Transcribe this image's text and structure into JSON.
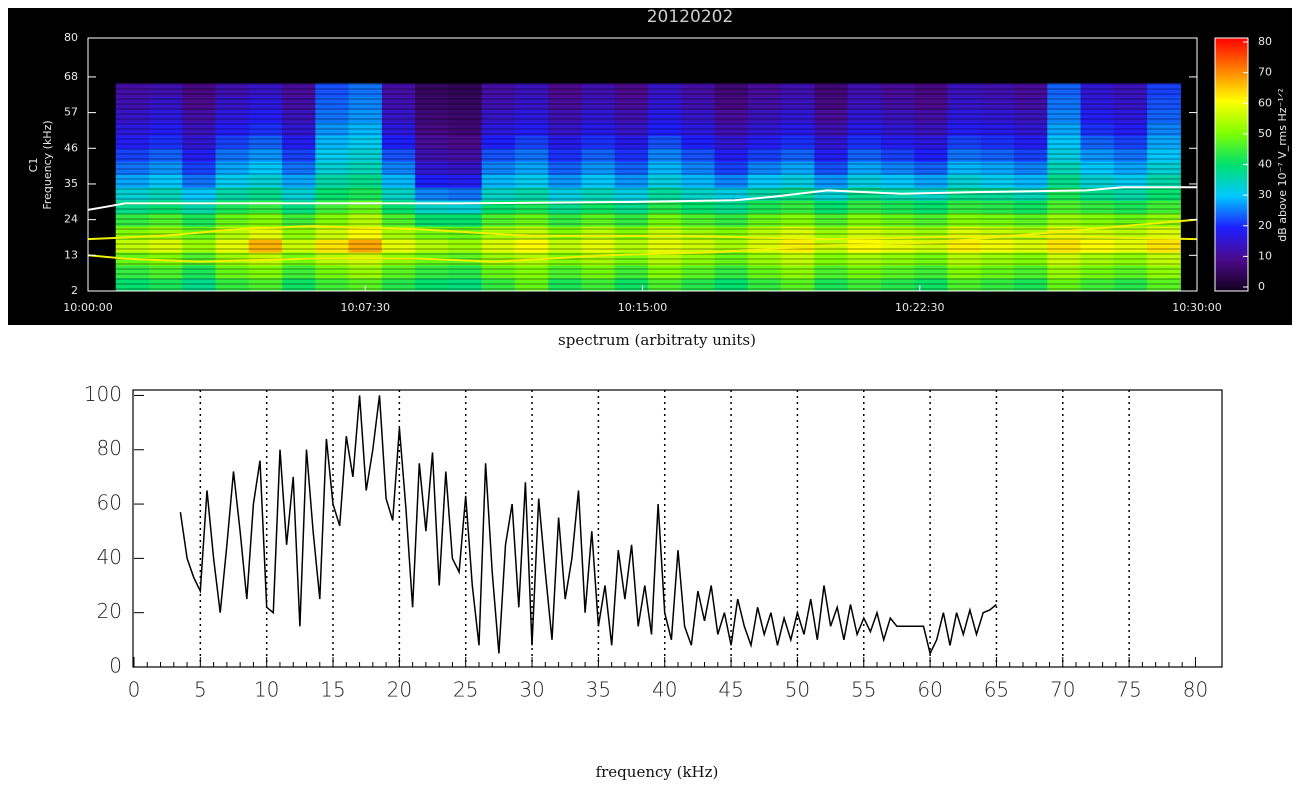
{
  "chart_data": [
    {
      "type": "heatmap",
      "title": "20120202",
      "panel_label": "C1",
      "ylabel": "Frequency (kHz)",
      "colorbar_label": "dB above 10⁻⁷ V_rms Hz⁻¹ᐟ²",
      "xlim": [
        "10:00:00",
        "10:30:00"
      ],
      "xticks": [
        "10:00:00",
        "10:07:30",
        "10:15:00",
        "10:22:30",
        "10:30:00"
      ],
      "ylim": [
        2,
        80
      ],
      "yticks": [
        2,
        13,
        24,
        35,
        46,
        57,
        68,
        80
      ],
      "zlim": [
        0,
        80
      ],
      "zticks": [
        0,
        10,
        20,
        30,
        40,
        50,
        60,
        70,
        80
      ],
      "x": [
        "10:01:12",
        "10:02:06",
        "10:03:00",
        "10:03:54",
        "10:04:48",
        "10:05:42",
        "10:06:36",
        "10:07:30",
        "10:08:24",
        "10:09:18",
        "10:10:12",
        "10:11:06",
        "10:12:00",
        "10:12:54",
        "10:13:48",
        "10:14:42",
        "10:15:36",
        "10:16:30",
        "10:17:24",
        "10:18:18",
        "10:19:12",
        "10:20:06",
        "10:21:00",
        "10:21:54",
        "10:22:48",
        "10:23:42",
        "10:24:36",
        "10:25:30",
        "10:26:24",
        "10:27:18",
        "10:28:12",
        "10:29:06"
      ],
      "y": [
        4,
        8,
        12,
        16,
        20,
        24,
        28,
        32,
        36,
        40,
        44,
        48,
        52,
        56,
        60,
        64
      ],
      "z": [
        [
          40,
          42,
          38,
          44,
          46,
          41,
          45,
          47,
          43,
          40,
          39,
          44,
          48,
          42,
          45,
          41,
          46,
          43,
          40,
          44,
          47,
          42,
          45,
          43,
          41,
          46,
          44,
          42,
          48,
          45,
          43,
          47
        ],
        [
          44,
          46,
          42,
          48,
          50,
          45,
          49,
          52,
          47,
          44,
          43,
          48,
          50,
          46,
          49,
          45,
          50,
          47,
          44,
          48,
          51,
          46,
          49,
          47,
          45,
          50,
          48,
          46,
          52,
          49,
          47,
          51
        ],
        [
          48,
          50,
          46,
          52,
          55,
          49,
          54,
          56,
          51,
          48,
          47,
          52,
          54,
          50,
          53,
          49,
          54,
          51,
          48,
          52,
          55,
          50,
          53,
          51,
          49,
          54,
          52,
          50,
          56,
          53,
          51,
          55
        ],
        [
          55,
          57,
          52,
          58,
          66,
          56,
          62,
          67,
          58,
          54,
          52,
          57,
          60,
          55,
          58,
          54,
          58,
          56,
          53,
          57,
          61,
          55,
          60,
          58,
          56,
          61,
          59,
          57,
          62,
          60,
          58,
          62
        ],
        [
          50,
          52,
          48,
          54,
          58,
          51,
          56,
          60,
          53,
          49,
          48,
          53,
          55,
          50,
          54,
          50,
          55,
          52,
          50,
          54,
          57,
          52,
          56,
          54,
          52,
          57,
          55,
          53,
          58,
          56,
          54,
          57
        ],
        [
          44,
          46,
          42,
          48,
          50,
          45,
          50,
          54,
          46,
          40,
          40,
          46,
          48,
          44,
          47,
          44,
          49,
          46,
          44,
          48,
          50,
          46,
          50,
          48,
          46,
          50,
          49,
          47,
          52,
          50,
          48,
          51
        ],
        [
          38,
          40,
          36,
          42,
          44,
          39,
          45,
          48,
          40,
          34,
          33,
          40,
          42,
          38,
          41,
          38,
          43,
          40,
          38,
          42,
          44,
          40,
          44,
          42,
          40,
          44,
          43,
          41,
          46,
          44,
          42,
          45
        ],
        [
          33,
          35,
          30,
          36,
          38,
          33,
          40,
          42,
          34,
          26,
          25,
          34,
          36,
          32,
          35,
          32,
          37,
          34,
          32,
          36,
          38,
          33,
          38,
          36,
          34,
          38,
          37,
          35,
          42,
          38,
          36,
          40
        ],
        [
          28,
          30,
          25,
          31,
          33,
          28,
          36,
          38,
          29,
          20,
          19,
          29,
          31,
          27,
          30,
          27,
          32,
          29,
          26,
          30,
          32,
          27,
          32,
          30,
          28,
          33,
          31,
          29,
          38,
          33,
          31,
          36
        ],
        [
          25,
          27,
          22,
          28,
          30,
          25,
          33,
          35,
          26,
          16,
          15,
          26,
          28,
          24,
          27,
          24,
          29,
          26,
          22,
          26,
          28,
          23,
          28,
          26,
          24,
          29,
          28,
          26,
          35,
          30,
          28,
          33
        ],
        [
          22,
          24,
          19,
          25,
          27,
          22,
          31,
          33,
          23,
          13,
          12,
          23,
          25,
          21,
          24,
          21,
          26,
          23,
          19,
          22,
          24,
          19,
          24,
          22,
          20,
          25,
          24,
          22,
          32,
          27,
          25,
          30
        ],
        [
          19,
          21,
          16,
          22,
          24,
          19,
          29,
          31,
          20,
          11,
          10,
          20,
          22,
          18,
          21,
          18,
          23,
          20,
          16,
          19,
          21,
          16,
          21,
          19,
          17,
          22,
          21,
          19,
          30,
          24,
          22,
          28
        ],
        [
          17,
          19,
          14,
          19,
          21,
          16,
          27,
          29,
          17,
          9,
          8,
          17,
          19,
          15,
          18,
          15,
          20,
          17,
          13,
          16,
          18,
          13,
          18,
          16,
          14,
          19,
          18,
          16,
          28,
          21,
          19,
          26
        ],
        [
          15,
          17,
          12,
          17,
          19,
          14,
          25,
          27,
          15,
          8,
          7,
          15,
          17,
          13,
          16,
          13,
          18,
          15,
          11,
          14,
          16,
          11,
          16,
          14,
          12,
          17,
          16,
          14,
          26,
          19,
          17,
          24
        ],
        [
          13,
          15,
          10,
          15,
          17,
          12,
          24,
          26,
          13,
          7,
          6,
          13,
          15,
          11,
          14,
          11,
          16,
          13,
          9,
          12,
          14,
          9,
          14,
          12,
          10,
          15,
          14,
          12,
          25,
          17,
          15,
          23
        ],
        [
          12,
          13,
          9,
          13,
          15,
          11,
          23,
          25,
          12,
          6,
          5,
          12,
          14,
          10,
          13,
          10,
          15,
          12,
          8,
          11,
          13,
          8,
          13,
          11,
          9,
          14,
          13,
          11,
          24,
          16,
          14,
          22
        ]
      ],
      "lines": [
        {
          "color": "#ffffff",
          "x": [
            "10:00:00",
            "10:00:30",
            "10:01:00",
            "10:05:00",
            "10:10:00",
            "10:15:00",
            "10:17:30",
            "10:18:30",
            "10:20:00",
            "10:22:00",
            "10:24:00",
            "10:27:00",
            "10:28:00",
            "10:30:00"
          ],
          "values": [
            27,
            28,
            29,
            29,
            29,
            29.5,
            30,
            31,
            33,
            32,
            32.5,
            33,
            34,
            34
          ]
        },
        {
          "color": "#f0f000",
          "x": [
            "10:00:00",
            "10:02:00",
            "10:04:00",
            "10:06:00",
            "10:09:00",
            "10:12:00",
            "10:16:00",
            "10:20:00",
            "10:25:00",
            "10:30:00"
          ],
          "values": [
            18,
            19,
            21,
            22,
            21,
            19,
            19,
            18,
            19,
            18
          ]
        },
        {
          "color": "#f0f000",
          "x": [
            "10:00:00",
            "10:01:00",
            "10:03:00",
            "10:06:00",
            "10:09:00",
            "10:11:00",
            "10:14:00",
            "10:17:00",
            "10:20:00",
            "10:23:00",
            "10:26:00",
            "10:28:00",
            "10:30:00"
          ],
          "values": [
            13,
            12,
            11,
            12,
            12,
            11,
            13,
            14,
            16,
            17,
            20,
            22,
            24
          ]
        }
      ]
    },
    {
      "type": "line",
      "title": "spectrum (arbitraty  units)",
      "xlabel": "frequency (kHz)",
      "color": "#000000",
      "xlim": [
        0,
        82
      ],
      "ylim": [
        0,
        102
      ],
      "xticks": [
        0,
        5,
        10,
        15,
        20,
        25,
        30,
        35,
        40,
        45,
        50,
        55,
        60,
        65,
        70,
        75,
        80
      ],
      "yticks": [
        0,
        20,
        40,
        60,
        80,
        100
      ],
      "grid": true,
      "x": [
        3.5,
        4,
        4.5,
        5,
        5.5,
        6,
        6.5,
        7,
        7.5,
        8,
        8.5,
        9,
        9.5,
        10,
        10.5,
        11,
        11.5,
        12,
        12.5,
        13,
        13.5,
        14,
        14.5,
        15,
        15.5,
        16,
        16.5,
        17,
        17.5,
        18,
        18.5,
        19,
        19.5,
        20,
        20.5,
        21,
        21.5,
        22,
        22.5,
        23,
        23.5,
        24,
        24.5,
        25,
        25.5,
        26,
        26.5,
        27,
        27.5,
        28,
        28.5,
        29,
        29.5,
        30,
        30.5,
        31,
        31.5,
        32,
        32.5,
        33,
        33.5,
        34,
        34.5,
        35,
        35.5,
        36,
        36.5,
        37,
        37.5,
        38,
        38.5,
        39,
        39.5,
        40,
        40.5,
        41,
        41.5,
        42,
        42.5,
        43,
        43.5,
        44,
        44.5,
        45,
        45.5,
        46,
        46.5,
        47,
        47.5,
        48,
        48.5,
        49,
        49.5,
        50,
        50.5,
        51,
        51.5,
        52,
        52.5,
        53,
        53.5,
        54,
        54.5,
        55,
        55.5,
        56,
        56.5,
        57,
        57.5,
        58,
        58.5,
        59,
        59.5,
        60,
        60.5,
        61,
        61.5,
        62,
        62.5,
        63,
        63.5,
        64,
        64.5,
        65
      ],
      "values": [
        57,
        40,
        33,
        28,
        65,
        40,
        20,
        45,
        72,
        50,
        25,
        60,
        76,
        22,
        20,
        80,
        45,
        70,
        15,
        80,
        50,
        25,
        84,
        60,
        52,
        85,
        70,
        100,
        65,
        80,
        100,
        62,
        54,
        88,
        58,
        22,
        75,
        50,
        79,
        30,
        72,
        40,
        35,
        63,
        30,
        8,
        75,
        35,
        5,
        45,
        60,
        22,
        68,
        8,
        62,
        35,
        10,
        55,
        25,
        40,
        65,
        20,
        50,
        15,
        30,
        8,
        43,
        25,
        45,
        15,
        30,
        12,
        60,
        20,
        10,
        43,
        15,
        8,
        28,
        17,
        30,
        12,
        20,
        8,
        25,
        15,
        8,
        22,
        12,
        20,
        8,
        18,
        10,
        20,
        12,
        25,
        10,
        30,
        15,
        22,
        10,
        23,
        12,
        18,
        13,
        20,
        10,
        18,
        15,
        15,
        15,
        15,
        15,
        5,
        10,
        20,
        8,
        20,
        12,
        21,
        12,
        20,
        21,
        23
      ]
    }
  ]
}
